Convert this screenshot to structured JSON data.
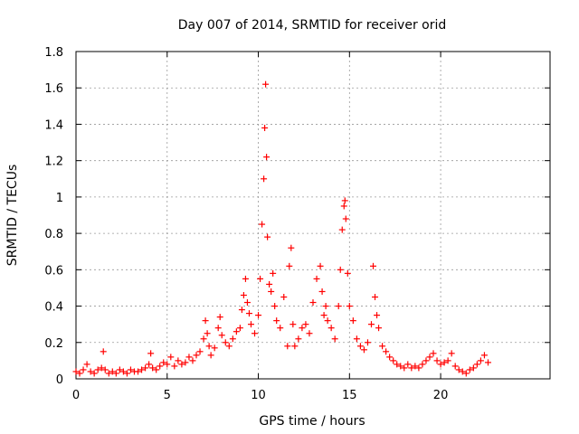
{
  "chart_data": {
    "type": "scatter",
    "title": "Day 007 of 2014, SRMTID for receiver orid",
    "xlabel": "GPS time / hours",
    "ylabel": "SRMTID / TECUs",
    "xlim": [
      0,
      26
    ],
    "ylim": [
      0,
      1.8
    ],
    "x_ticks": [
      0,
      5,
      10,
      15,
      20
    ],
    "x_tick_labels": [
      "0",
      "5",
      "10",
      "15",
      "20"
    ],
    "y_ticks": [
      0,
      0.2,
      0.4,
      0.6,
      0.8,
      1.0,
      1.2,
      1.4,
      1.6,
      1.8
    ],
    "y_tick_labels": [
      "0",
      "0.2",
      "0.4",
      "0.6",
      "0.8",
      "1",
      "1.2",
      "1.4",
      "1.6",
      "1.8"
    ],
    "grid": true,
    "marker": "+",
    "color": "#ff0000",
    "series": [
      {
        "name": "SRMTID",
        "x": [
          0.0,
          0.2,
          0.4,
          0.6,
          0.8,
          1.0,
          1.2,
          1.4,
          1.5,
          1.6,
          1.8,
          2.0,
          2.2,
          2.4,
          2.6,
          2.8,
          3.0,
          3.2,
          3.4,
          3.6,
          3.8,
          4.0,
          4.1,
          4.2,
          4.4,
          4.6,
          4.8,
          5.0,
          5.2,
          5.4,
          5.6,
          5.8,
          6.0,
          6.2,
          6.4,
          6.6,
          6.8,
          7.0,
          7.1,
          7.2,
          7.3,
          7.4,
          7.6,
          7.8,
          7.9,
          8.0,
          8.2,
          8.4,
          8.6,
          8.8,
          9.0,
          9.1,
          9.2,
          9.3,
          9.4,
          9.5,
          9.6,
          9.8,
          10.0,
          10.1,
          10.2,
          10.3,
          10.35,
          10.4,
          10.45,
          10.5,
          10.6,
          10.7,
          10.8,
          10.9,
          11.0,
          11.2,
          11.4,
          11.6,
          11.7,
          11.8,
          11.9,
          12.0,
          12.2,
          12.4,
          12.6,
          12.8,
          13.0,
          13.2,
          13.4,
          13.5,
          13.6,
          13.7,
          13.8,
          14.0,
          14.2,
          14.4,
          14.5,
          14.6,
          14.7,
          14.75,
          14.8,
          14.9,
          15.0,
          15.2,
          15.4,
          15.6,
          15.8,
          16.0,
          16.2,
          16.3,
          16.4,
          16.5,
          16.6,
          16.8,
          17.0,
          17.2,
          17.4,
          17.6,
          17.8,
          18.0,
          18.2,
          18.4,
          18.6,
          18.8,
          19.0,
          19.2,
          19.4,
          19.6,
          19.8,
          20.0,
          20.2,
          20.4,
          20.6,
          20.8,
          21.0,
          21.2,
          21.4,
          21.6,
          21.8,
          22.0,
          22.2,
          22.4,
          22.6
        ],
        "y": [
          0.04,
          0.03,
          0.05,
          0.08,
          0.04,
          0.03,
          0.05,
          0.06,
          0.15,
          0.05,
          0.03,
          0.04,
          0.03,
          0.05,
          0.04,
          0.03,
          0.05,
          0.04,
          0.04,
          0.05,
          0.06,
          0.08,
          0.14,
          0.06,
          0.05,
          0.07,
          0.09,
          0.08,
          0.12,
          0.07,
          0.1,
          0.08,
          0.09,
          0.12,
          0.1,
          0.13,
          0.15,
          0.22,
          0.32,
          0.25,
          0.18,
          0.13,
          0.17,
          0.28,
          0.34,
          0.24,
          0.2,
          0.18,
          0.22,
          0.26,
          0.28,
          0.38,
          0.46,
          0.55,
          0.42,
          0.36,
          0.3,
          0.25,
          0.35,
          0.55,
          0.85,
          1.1,
          1.38,
          1.62,
          1.22,
          0.78,
          0.52,
          0.48,
          0.58,
          0.4,
          0.32,
          0.28,
          0.45,
          0.18,
          0.62,
          0.72,
          0.3,
          0.18,
          0.22,
          0.28,
          0.3,
          0.25,
          0.42,
          0.55,
          0.62,
          0.48,
          0.35,
          0.4,
          0.32,
          0.28,
          0.22,
          0.4,
          0.6,
          0.82,
          0.95,
          0.98,
          0.88,
          0.58,
          0.4,
          0.32,
          0.22,
          0.18,
          0.16,
          0.2,
          0.3,
          0.62,
          0.45,
          0.35,
          0.28,
          0.18,
          0.15,
          0.12,
          0.1,
          0.08,
          0.07,
          0.06,
          0.08,
          0.06,
          0.07,
          0.06,
          0.08,
          0.1,
          0.12,
          0.14,
          0.1,
          0.08,
          0.09,
          0.1,
          0.14,
          0.07,
          0.05,
          0.04,
          0.03,
          0.05,
          0.06,
          0.08,
          0.1,
          0.13,
          0.09
        ]
      }
    ]
  }
}
